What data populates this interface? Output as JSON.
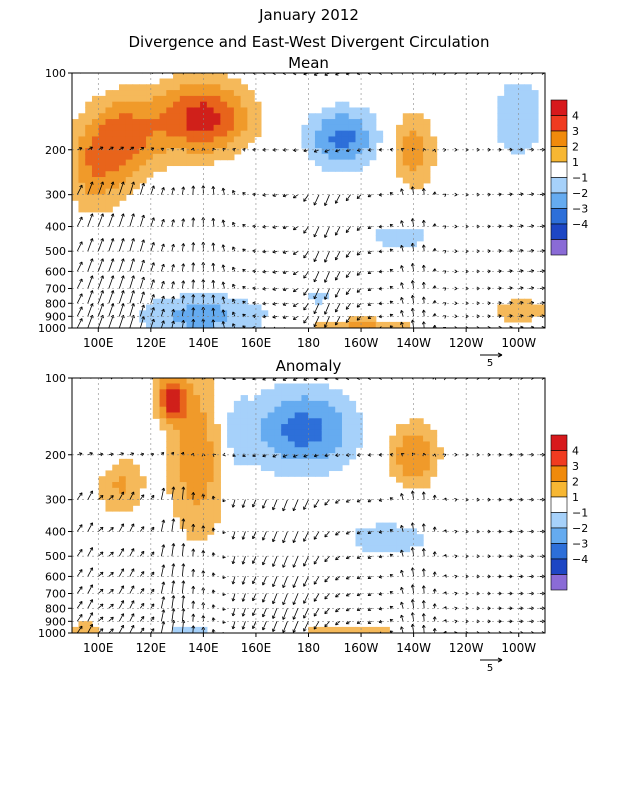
{
  "title_line1": "January 2012",
  "title_line2": "Divergence and East-West Divergent Circulation",
  "colorbar_labels": [
    "4",
    "3",
    "2",
    "1",
    "−1",
    "−2",
    "−3",
    "−4"
  ],
  "colorbar_colors": [
    "#d7191c",
    "#f03b20",
    "#f08a0b",
    "#f7b733",
    "#ffffff",
    "#a6d1fa",
    "#65abf0",
    "#2d6fd9",
    "#1d46c4",
    "#8a6bd6"
  ],
  "fill_colors": {
    "pos1": "#f5b95a",
    "pos2": "#f09a2a",
    "pos3": "#e8641b",
    "pos4": "#d0201a",
    "neg1": "#a6d1fa",
    "neg2": "#65abf0",
    "neg3": "#2d6fd9"
  },
  "reference_vector_label": "5",
  "chart_data": [
    {
      "type": "heatmap",
      "title": "Mean",
      "x_tick_labels": [
        "100E",
        "120E",
        "140E",
        "160E",
        "180",
        "160W",
        "140W",
        "120W",
        "100W"
      ],
      "x_ticks_deg": [
        100,
        120,
        140,
        160,
        180,
        200,
        220,
        240,
        260
      ],
      "xlim_deg": [
        90,
        270
      ],
      "y_tick_labels": [
        "100",
        "200",
        "300",
        "400",
        "500",
        "600",
        "700",
        "800",
        "900",
        "1000"
      ],
      "y_ticks_hpa": [
        100,
        200,
        300,
        400,
        500,
        600,
        700,
        800,
        900,
        1000
      ],
      "ylim_hpa": [
        100,
        1000
      ],
      "y_scale": "log",
      "grid": "dashed",
      "contour_levels": [
        -4,
        -3,
        -2,
        -1,
        1,
        2,
        3,
        4
      ],
      "features": [
        {
          "sign": "pos",
          "lon": 140,
          "p": 150,
          "peak": 4.5,
          "lon_width": 13,
          "p_width": 0.24
        },
        {
          "sign": "pos",
          "lon": 110,
          "p": 180,
          "peak": 3.2,
          "lon_width": 10,
          "p_width": 0.28
        },
        {
          "sign": "pos",
          "lon": 98,
          "p": 240,
          "peak": 2.2,
          "lon_width": 8,
          "p_width": 0.3
        },
        {
          "sign": "pos",
          "lon": 220,
          "p": 200,
          "peak": 2.6,
          "lon_width": 6,
          "p_width": 0.25
        },
        {
          "sign": "pos",
          "lon": 200,
          "p": 970,
          "peak": 2.2,
          "lon_width": 14,
          "p_width": 0.04
        },
        {
          "sign": "pos",
          "lon": 260,
          "p": 860,
          "peak": 2.0,
          "lon_width": 8,
          "p_width": 0.08
        },
        {
          "sign": "neg",
          "lon": 193,
          "p": 180,
          "peak": -3.3,
          "lon_width": 10,
          "p_width": 0.2
        },
        {
          "sign": "neg",
          "lon": 260,
          "p": 150,
          "peak": -1.8,
          "lon_width": 8,
          "p_width": 0.3
        },
        {
          "sign": "neg",
          "lon": 140,
          "p": 900,
          "peak": -2.4,
          "lon_width": 18,
          "p_width": 0.15
        },
        {
          "sign": "neg",
          "lon": 215,
          "p": 440,
          "peak": -1.6,
          "lon_width": 10,
          "p_width": 0.1
        },
        {
          "sign": "neg",
          "lon": 185,
          "p": 760,
          "peak": -1.3,
          "lon_width": 5,
          "p_width": 0.05
        }
      ]
    },
    {
      "type": "heatmap",
      "title": "Anomaly",
      "x_tick_labels": [
        "100E",
        "120E",
        "140E",
        "160E",
        "180",
        "160W",
        "140W",
        "120W",
        "100W"
      ],
      "x_ticks_deg": [
        100,
        120,
        140,
        160,
        180,
        200,
        220,
        240,
        260
      ],
      "xlim_deg": [
        90,
        270
      ],
      "y_tick_labels": [
        "100",
        "200",
        "300",
        "400",
        "500",
        "600",
        "700",
        "800",
        "900",
        "1000"
      ],
      "y_ticks_hpa": [
        100,
        200,
        300,
        400,
        500,
        600,
        700,
        800,
        900,
        1000
      ],
      "ylim_hpa": [
        100,
        1000
      ],
      "y_scale": "log",
      "grid": "dashed",
      "contour_levels": [
        -4,
        -3,
        -2,
        -1,
        1,
        2,
        3,
        4
      ],
      "features": [
        {
          "sign": "pos",
          "lon": 138,
          "p": 200,
          "peak": 2.8,
          "lon_width": 8,
          "p_width": 0.55
        },
        {
          "sign": "pos",
          "lon": 128,
          "p": 120,
          "peak": 4.2,
          "lon_width": 4,
          "p_width": 0.15
        },
        {
          "sign": "pos",
          "lon": 108,
          "p": 260,
          "peak": 2.2,
          "lon_width": 7,
          "p_width": 0.2
        },
        {
          "sign": "pos",
          "lon": 220,
          "p": 200,
          "peak": 3.0,
          "lon_width": 7,
          "p_width": 0.22
        },
        {
          "sign": "pos",
          "lon": 195,
          "p": 980,
          "peak": 2.0,
          "lon_width": 14,
          "p_width": 0.03
        },
        {
          "sign": "pos",
          "lon": 95,
          "p": 960,
          "peak": 2.0,
          "lon_width": 4,
          "p_width": 0.05
        },
        {
          "sign": "neg",
          "lon": 178,
          "p": 160,
          "peak": -3.4,
          "lon_width": 15,
          "p_width": 0.28
        },
        {
          "sign": "neg",
          "lon": 210,
          "p": 430,
          "peak": -1.8,
          "lon_width": 12,
          "p_width": 0.12
        },
        {
          "sign": "neg",
          "lon": 102,
          "p": 180,
          "peak": -1.2,
          "lon_width": 4,
          "p_width": 0.2
        },
        {
          "sign": "neg",
          "lon": 152,
          "p": 170,
          "peak": -1.5,
          "lon_width": 4,
          "p_width": 0.3
        },
        {
          "sign": "neg",
          "lon": 135,
          "p": 960,
          "peak": -1.5,
          "lon_width": 8,
          "p_width": 0.04
        }
      ]
    }
  ]
}
